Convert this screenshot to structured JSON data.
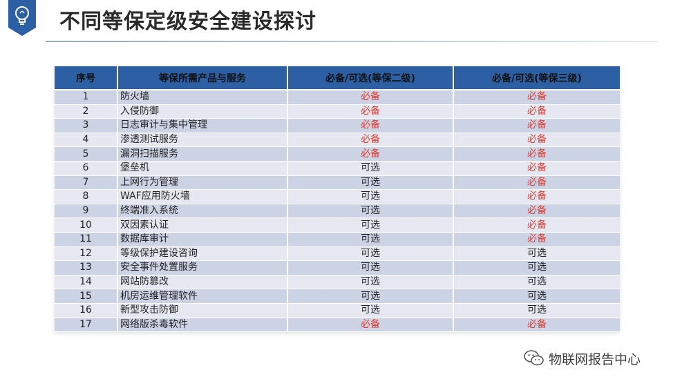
{
  "title": "不同等保定级安全建设探讨",
  "badge_icon": "lightbulb-icon",
  "colors": {
    "header_bg": "#2c5fa3",
    "row_odd": "#ccd3e5",
    "row_even": "#e5e8f1",
    "required_text": "#e23a2f",
    "optional_text": "#222222"
  },
  "table": {
    "headers": [
      "序号",
      "等保所需产品与服务",
      "必备/可选(等保二级)",
      "必备/可选(等保三级)"
    ],
    "rows": [
      {
        "no": "1",
        "name": "防火墙",
        "level2": "必备",
        "level3": "必备"
      },
      {
        "no": "2",
        "name": "入侵防御",
        "level2": "必备",
        "level3": "必备"
      },
      {
        "no": "3",
        "name": "日志审计与集中管理",
        "level2": "必备",
        "level3": "必备"
      },
      {
        "no": "4",
        "name": "渗透测试服务",
        "level2": "必备",
        "level3": "必备"
      },
      {
        "no": "5",
        "name": "漏洞扫描服务",
        "level2": "必备",
        "level3": "必备"
      },
      {
        "no": "6",
        "name": "堡垒机",
        "level2": "可选",
        "level3": "必备"
      },
      {
        "no": "7",
        "name": "上网行为管理",
        "level2": "可选",
        "level3": "必备"
      },
      {
        "no": "8",
        "name": "WAF应用防火墙",
        "level2": "可选",
        "level3": "必备"
      },
      {
        "no": "9",
        "name": "终端准入系统",
        "level2": "可选",
        "level3": "必备"
      },
      {
        "no": "10",
        "name": "双因素认证",
        "level2": "可选",
        "level3": "必备"
      },
      {
        "no": "11",
        "name": "数据库审计",
        "level2": "可选",
        "level3": "必备"
      },
      {
        "no": "12",
        "name": "等级保护建设咨询",
        "level2": "可选",
        "level3": "可选"
      },
      {
        "no": "13",
        "name": "安全事件处置服务",
        "level2": "可选",
        "level3": "可选"
      },
      {
        "no": "14",
        "name": "网站防篡改",
        "level2": "可选",
        "level3": "可选"
      },
      {
        "no": "15",
        "name": "机房运维管理软件",
        "level2": "可选",
        "level3": "可选"
      },
      {
        "no": "16",
        "name": "新型攻击防御",
        "level2": "可选",
        "level3": "可选"
      },
      {
        "no": "17",
        "name": "网络版杀毒软件",
        "level2": "必备",
        "level3": "必备"
      }
    ]
  },
  "watermark": {
    "icon": "wechat-icon",
    "text": "物联网报告中心"
  }
}
